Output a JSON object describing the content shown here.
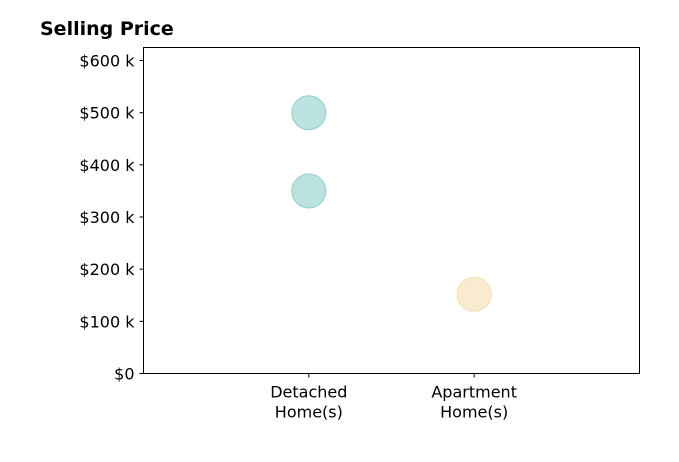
{
  "chart_data": {
    "type": "scatter",
    "title": "Selling Price",
    "xlabel": "",
    "ylabel": "",
    "categories": [
      "Detached\nHome(s)",
      "Apartment\nHome(s)"
    ],
    "yticks": [
      0,
      100000,
      200000,
      300000,
      400000,
      500000,
      600000
    ],
    "ytick_labels": [
      "$0",
      "$100 k",
      "$200 k",
      "$300 k",
      "$400 k",
      "$500 k",
      "$600 k"
    ],
    "ylim": [
      0,
      625000
    ],
    "grid": false,
    "legend": "none",
    "series": [
      {
        "color": "#8ecfc9",
        "points": [
          {
            "category": "Detached\nHome(s)",
            "value": 500000
          },
          {
            "category": "Detached\nHome(s)",
            "value": 350000
          }
        ]
      },
      {
        "color": "#f5deb0",
        "points": [
          {
            "category": "Apartment\nHome(s)",
            "value": 152000
          }
        ]
      }
    ]
  }
}
